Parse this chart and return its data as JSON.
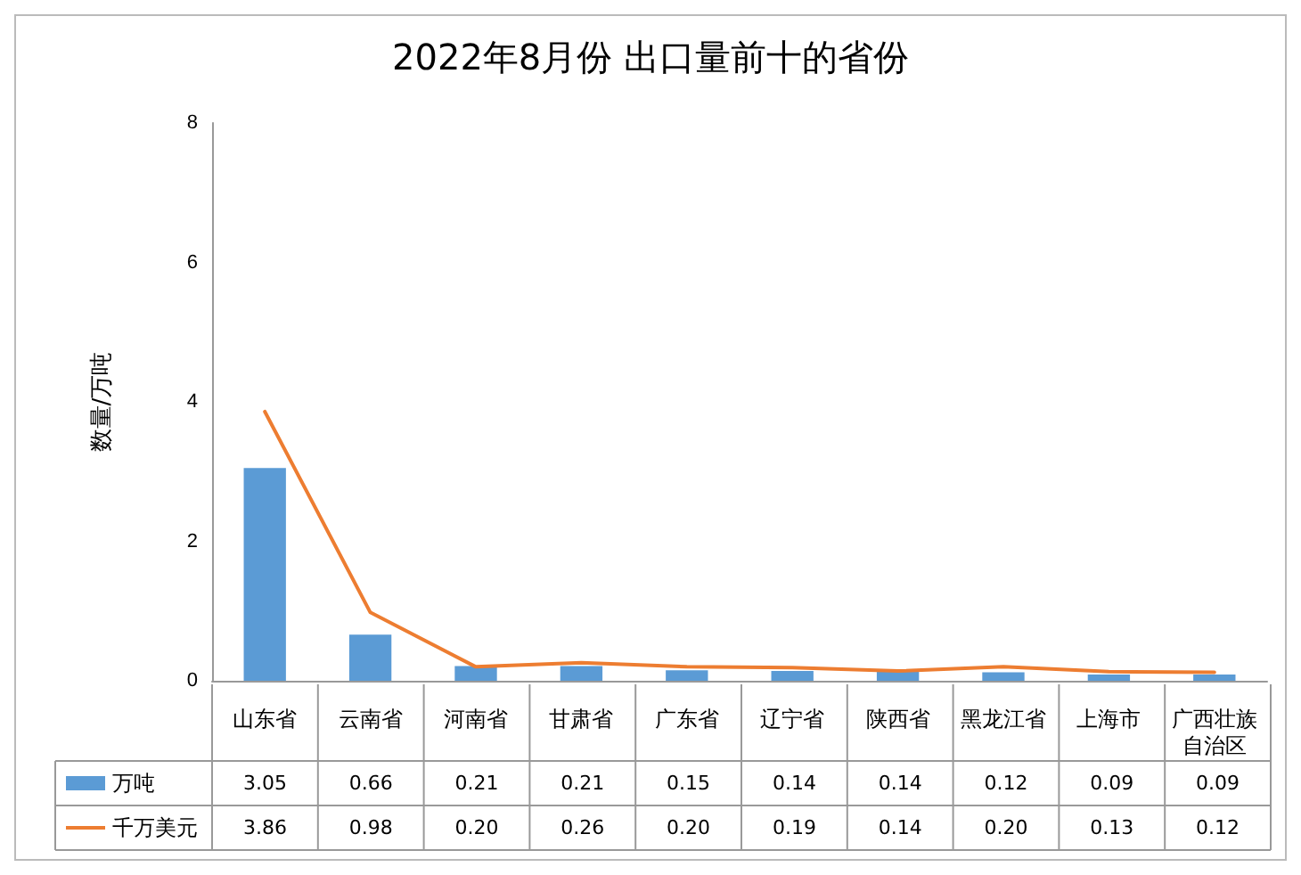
{
  "chart_data": {
    "type": "bar",
    "title": "2022年8月份 出口量前十的省份",
    "ylabel": "数量/万吨",
    "categories": [
      "山东省",
      "云南省",
      "河南省",
      "甘肃省",
      "广东省",
      "辽宁省",
      "陕西省",
      "黑龙江省",
      "上海市",
      "广西壮族自治区"
    ],
    "series": [
      {
        "name": "万吨",
        "color": "#5b9bd5",
        "values": [
          3.05,
          0.66,
          0.21,
          0.21,
          0.15,
          0.14,
          0.14,
          0.12,
          0.09,
          0.09
        ],
        "value_labels": [
          "3.05",
          "0.66",
          "0.21",
          "0.21",
          "0.15",
          "0.14",
          "0.14",
          "0.12",
          "0.09",
          "0.09"
        ]
      },
      {
        "name": "千万美元",
        "type": "line",
        "color": "#ed7d31",
        "values": [
          3.86,
          0.98,
          0.2,
          0.26,
          0.2,
          0.19,
          0.14,
          0.2,
          0.13,
          0.12
        ],
        "value_labels": [
          "3.86",
          "0.98",
          "0.20",
          "0.26",
          "0.20",
          "0.19",
          "0.14",
          "0.20",
          "0.13",
          "0.12"
        ]
      }
    ],
    "ylim": [
      0,
      8
    ],
    "yticks": [
      0,
      2,
      4,
      6,
      8
    ],
    "grid": false,
    "legend": "bottom",
    "marker": "none",
    "line_style": "solid"
  }
}
